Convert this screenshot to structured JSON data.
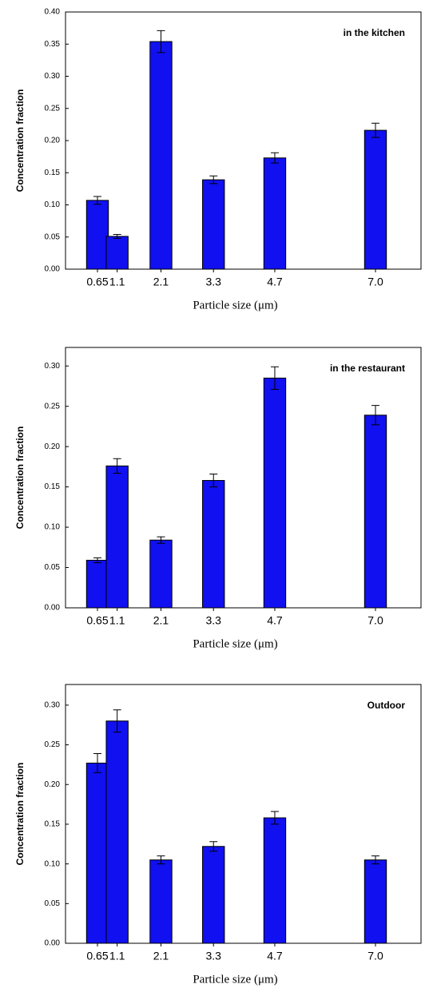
{
  "chart_data": [
    {
      "type": "bar",
      "annotation": "in the kitchen",
      "ylabel": "Concentration fraction",
      "xlabel": "Particle size (μm)",
      "x": [
        0.65,
        1.1,
        2.1,
        3.3,
        4.7,
        7.0
      ],
      "series": [
        {
          "color": "#1010f0",
          "values": [
            0.107,
            0.051,
            0.354,
            0.139,
            0.173,
            0.216
          ],
          "errors": [
            0.006,
            0.003,
            0.017,
            0.006,
            0.008,
            0.011
          ]
        }
      ],
      "xlim": [
        -0.08,
        8.04
      ],
      "xticks": [
        0.65,
        1.1,
        2.1,
        3.3,
        4.7,
        {
          "value": 7.0,
          "label": "7.0"
        }
      ],
      "ylim": [
        0,
        0.4
      ],
      "yticks": [
        {
          "value": 0,
          "label": "0.00"
        },
        {
          "value": 0.05,
          "label": "0.05"
        },
        {
          "value": 0.1,
          "label": "0.10"
        },
        {
          "value": 0.15,
          "label": "0.15"
        },
        {
          "value": 0.2,
          "label": "0.20"
        },
        {
          "value": 0.25,
          "label": "0.25"
        },
        {
          "value": 0.3,
          "label": "0.30"
        },
        {
          "value": 0.35,
          "label": "0.35"
        },
        {
          "value": 0.4,
          "label": "0.40"
        }
      ]
    },
    {
      "type": "bar",
      "annotation": "in the restaurant",
      "ylabel": "Concentration fraction",
      "xlabel": "Particle size (μm)",
      "x": [
        0.65,
        1.1,
        2.1,
        3.3,
        4.7,
        7.0
      ],
      "series": [
        {
          "color": "#1010f0",
          "values": [
            0.059,
            0.176,
            0.084,
            0.158,
            0.285,
            0.239
          ],
          "errors": [
            0.003,
            0.009,
            0.004,
            0.008,
            0.014,
            0.012
          ]
        }
      ],
      "xlim": [
        -0.08,
        8.04
      ],
      "xticks": [
        0.65,
        1.1,
        2.1,
        3.3,
        4.7,
        {
          "value": 7.0,
          "label": "7.0"
        }
      ],
      "ylim": [
        0,
        0.323
      ],
      "yticks": [
        {
          "value": 0,
          "label": "0.00"
        },
        {
          "value": 0.05,
          "label": "0.05"
        },
        {
          "value": 0.1,
          "label": "0.10"
        },
        {
          "value": 0.15,
          "label": "0.15"
        },
        {
          "value": 0.2,
          "label": "0.20"
        },
        {
          "value": 0.25,
          "label": "0.25"
        },
        {
          "value": 0.3,
          "label": "0.30"
        }
      ]
    },
    {
      "type": "bar",
      "annotation": "Outdoor",
      "ylabel": "Concentration fraction",
      "xlabel": "Particle size (μm)",
      "x": [
        0.65,
        1.1,
        2.1,
        3.3,
        4.7,
        7.0
      ],
      "series": [
        {
          "color": "#1010f0",
          "values": [
            0.227,
            0.28,
            0.105,
            0.122,
            0.158,
            0.105
          ],
          "errors": [
            0.012,
            0.014,
            0.005,
            0.006,
            0.008,
            0.005
          ]
        }
      ],
      "xlim": [
        -0.08,
        8.04
      ],
      "xticks": [
        0.65,
        1.1,
        2.1,
        3.3,
        4.7,
        {
          "value": 7.0,
          "label": "7.0"
        }
      ],
      "ylim": [
        0,
        0.326
      ],
      "yticks": [
        {
          "value": 0,
          "label": "0.00"
        },
        {
          "value": 0.05,
          "label": "0.05"
        },
        {
          "value": 0.1,
          "label": "0.10"
        },
        {
          "value": 0.15,
          "label": "0.15"
        },
        {
          "value": 0.2,
          "label": "0.20"
        },
        {
          "value": 0.25,
          "label": "0.25"
        },
        {
          "value": 0.3,
          "label": "0.30"
        }
      ]
    }
  ]
}
